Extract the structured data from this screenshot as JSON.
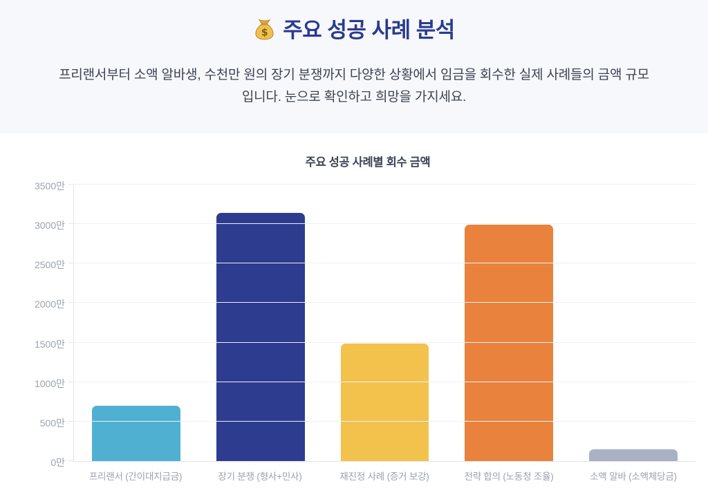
{
  "header": {
    "background": "#f7f8fb",
    "title_icon": "money-bag-icon",
    "title": "주요 성공 사례 분석",
    "title_color": "#2b3a8e",
    "description": "프리랜서부터 소액 알바생, 수천만 원의 장기 분쟁까지 다양한 상황에서 임금을 회수한 실제 사례들의 금액 규모입니다. 눈으로 확인하고 희망을 가지세요."
  },
  "chart_data": {
    "type": "bar",
    "title": "주요 성공 사례별 회수 금액",
    "categories": [
      "프리랜서 (간이대지급금)",
      "장기 분쟁 (형사+민사)",
      "재진정 사례 (증거 보강)",
      "전략 합의 (노동청 조율)",
      "소액 알바 (소액체당금)"
    ],
    "values": [
      700,
      3140,
      1490,
      2990,
      150
    ],
    "unit": "만",
    "bar_colors": [
      "#4fb0d2",
      "#2d3c8e",
      "#f3c24d",
      "#e8823c",
      "#a9b2c4"
    ],
    "ylim": [
      0,
      3500
    ],
    "y_ticks": [
      0,
      500,
      1000,
      1500,
      2000,
      2500,
      3000,
      3500
    ],
    "y_tick_labels": [
      "0만",
      "500만",
      "1000만",
      "1500만",
      "2000만",
      "2500만",
      "3000만",
      "3500만"
    ],
    "grid": true,
    "legend": "none",
    "xlabel": "",
    "ylabel": "",
    "grid_color": "#edf0f6",
    "axis_color": "#e0e4eb",
    "tick_label_color": "#9aa1ac"
  }
}
